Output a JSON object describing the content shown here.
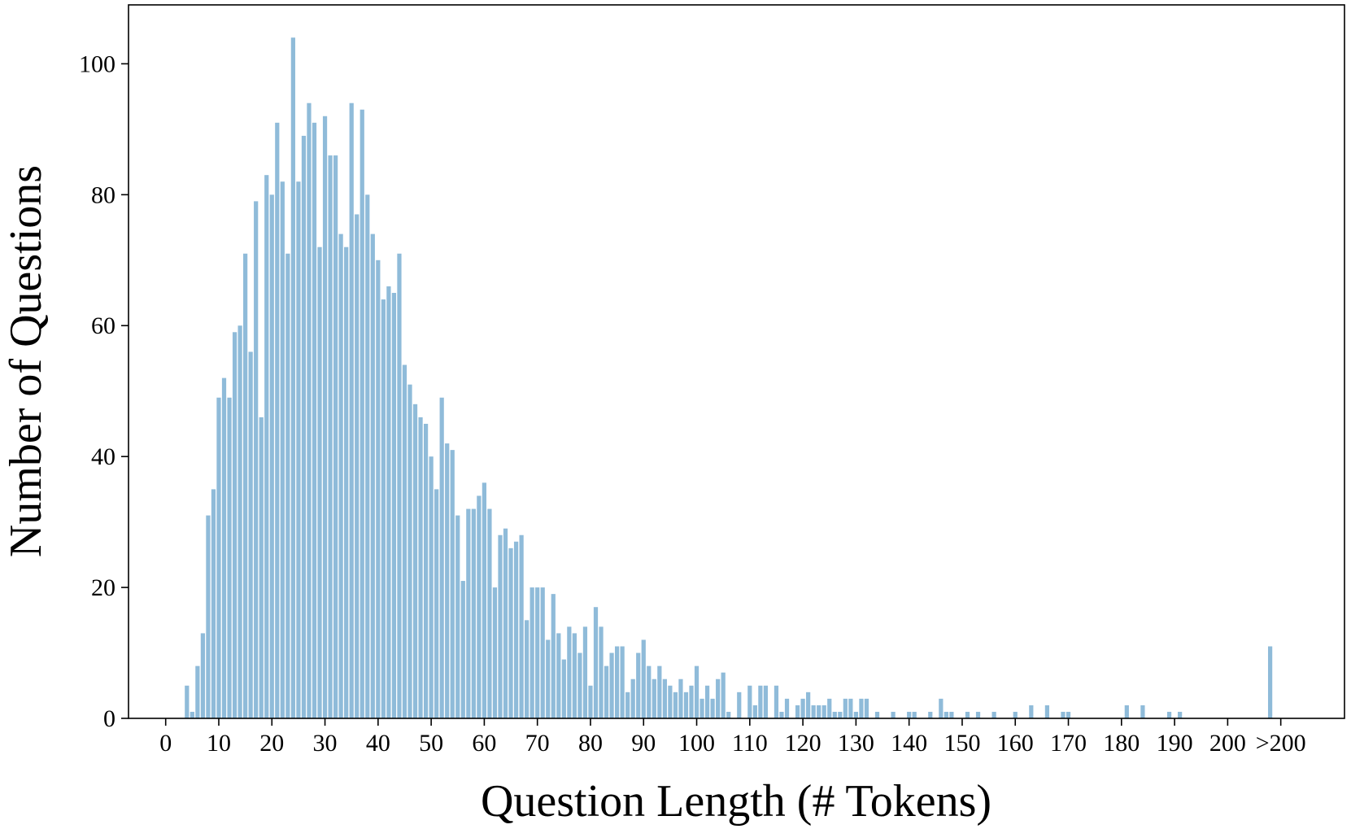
{
  "chart_data": {
    "type": "bar",
    "title": "",
    "xlabel": "Question Length (# Tokens)",
    "ylabel": "Number of Questions",
    "ylim": [
      0,
      109
    ],
    "xlim": [
      -7,
      222
    ],
    "yticks": [
      0,
      20,
      40,
      60,
      80,
      100
    ],
    "xticks": [
      {
        "value": 0,
        "label": "0"
      },
      {
        "value": 10,
        "label": "10"
      },
      {
        "value": 20,
        "label": "20"
      },
      {
        "value": 30,
        "label": "30"
      },
      {
        "value": 40,
        "label": "40"
      },
      {
        "value": 50,
        "label": "50"
      },
      {
        "value": 60,
        "label": "60"
      },
      {
        "value": 70,
        "label": "70"
      },
      {
        "value": 80,
        "label": "80"
      },
      {
        "value": 90,
        "label": "90"
      },
      {
        "value": 100,
        "label": "100"
      },
      {
        "value": 110,
        "label": "110"
      },
      {
        "value": 120,
        "label": "120"
      },
      {
        "value": 130,
        "label": "130"
      },
      {
        "value": 140,
        "label": "140"
      },
      {
        "value": 150,
        "label": "150"
      },
      {
        "value": 160,
        "label": "160"
      },
      {
        "value": 170,
        "label": "170"
      },
      {
        "value": 180,
        "label": "180"
      },
      {
        "value": 190,
        "label": "190"
      },
      {
        "value": 200,
        "label": "200"
      },
      {
        "value": 210,
        "label": ">200"
      }
    ],
    "bar_color": "#8fbbd9",
    "grid": false,
    "legend": "none",
    "bars": [
      {
        "x": 4,
        "y": 5
      },
      {
        "x": 5,
        "y": 1
      },
      {
        "x": 6,
        "y": 8
      },
      {
        "x": 7,
        "y": 13
      },
      {
        "x": 8,
        "y": 31
      },
      {
        "x": 9,
        "y": 35
      },
      {
        "x": 10,
        "y": 49
      },
      {
        "x": 11,
        "y": 52
      },
      {
        "x": 12,
        "y": 49
      },
      {
        "x": 13,
        "y": 59
      },
      {
        "x": 14,
        "y": 60
      },
      {
        "x": 15,
        "y": 71
      },
      {
        "x": 16,
        "y": 56
      },
      {
        "x": 17,
        "y": 79
      },
      {
        "x": 18,
        "y": 46
      },
      {
        "x": 19,
        "y": 83
      },
      {
        "x": 20,
        "y": 80
      },
      {
        "x": 21,
        "y": 91
      },
      {
        "x": 22,
        "y": 82
      },
      {
        "x": 23,
        "y": 71
      },
      {
        "x": 24,
        "y": 104
      },
      {
        "x": 25,
        "y": 82
      },
      {
        "x": 26,
        "y": 89
      },
      {
        "x": 27,
        "y": 94
      },
      {
        "x": 28,
        "y": 91
      },
      {
        "x": 29,
        "y": 72
      },
      {
        "x": 30,
        "y": 92
      },
      {
        "x": 31,
        "y": 86
      },
      {
        "x": 32,
        "y": 86
      },
      {
        "x": 33,
        "y": 74
      },
      {
        "x": 34,
        "y": 72
      },
      {
        "x": 35,
        "y": 94
      },
      {
        "x": 36,
        "y": 77
      },
      {
        "x": 37,
        "y": 93
      },
      {
        "x": 38,
        "y": 80
      },
      {
        "x": 39,
        "y": 74
      },
      {
        "x": 40,
        "y": 70
      },
      {
        "x": 41,
        "y": 64
      },
      {
        "x": 42,
        "y": 66
      },
      {
        "x": 43,
        "y": 65
      },
      {
        "x": 44,
        "y": 71
      },
      {
        "x": 45,
        "y": 54
      },
      {
        "x": 46,
        "y": 51
      },
      {
        "x": 47,
        "y": 48
      },
      {
        "x": 48,
        "y": 46
      },
      {
        "x": 49,
        "y": 45
      },
      {
        "x": 50,
        "y": 40
      },
      {
        "x": 51,
        "y": 35
      },
      {
        "x": 52,
        "y": 49
      },
      {
        "x": 53,
        "y": 42
      },
      {
        "x": 54,
        "y": 41
      },
      {
        "x": 55,
        "y": 31
      },
      {
        "x": 56,
        "y": 21
      },
      {
        "x": 57,
        "y": 32
      },
      {
        "x": 58,
        "y": 32
      },
      {
        "x": 59,
        "y": 34
      },
      {
        "x": 60,
        "y": 36
      },
      {
        "x": 61,
        "y": 32
      },
      {
        "x": 62,
        "y": 20
      },
      {
        "x": 63,
        "y": 28
      },
      {
        "x": 64,
        "y": 29
      },
      {
        "x": 65,
        "y": 26
      },
      {
        "x": 66,
        "y": 27
      },
      {
        "x": 67,
        "y": 28
      },
      {
        "x": 68,
        "y": 15
      },
      {
        "x": 69,
        "y": 20
      },
      {
        "x": 70,
        "y": 20
      },
      {
        "x": 71,
        "y": 20
      },
      {
        "x": 72,
        "y": 12
      },
      {
        "x": 73,
        "y": 19
      },
      {
        "x": 74,
        "y": 13
      },
      {
        "x": 75,
        "y": 9
      },
      {
        "x": 76,
        "y": 14
      },
      {
        "x": 77,
        "y": 13
      },
      {
        "x": 78,
        "y": 10
      },
      {
        "x": 79,
        "y": 14
      },
      {
        "x": 80,
        "y": 5
      },
      {
        "x": 81,
        "y": 17
      },
      {
        "x": 82,
        "y": 14
      },
      {
        "x": 83,
        "y": 8
      },
      {
        "x": 84,
        "y": 10
      },
      {
        "x": 85,
        "y": 11
      },
      {
        "x": 86,
        "y": 11
      },
      {
        "x": 87,
        "y": 4
      },
      {
        "x": 88,
        "y": 6
      },
      {
        "x": 89,
        "y": 10
      },
      {
        "x": 90,
        "y": 12
      },
      {
        "x": 91,
        "y": 8
      },
      {
        "x": 92,
        "y": 6
      },
      {
        "x": 93,
        "y": 8
      },
      {
        "x": 94,
        "y": 6
      },
      {
        "x": 95,
        "y": 5
      },
      {
        "x": 96,
        "y": 4
      },
      {
        "x": 97,
        "y": 6
      },
      {
        "x": 98,
        "y": 4
      },
      {
        "x": 99,
        "y": 5
      },
      {
        "x": 100,
        "y": 8
      },
      {
        "x": 101,
        "y": 3
      },
      {
        "x": 102,
        "y": 5
      },
      {
        "x": 103,
        "y": 3
      },
      {
        "x": 104,
        "y": 6
      },
      {
        "x": 105,
        "y": 7
      },
      {
        "x": 106,
        "y": 1
      },
      {
        "x": 108,
        "y": 4
      },
      {
        "x": 110,
        "y": 5
      },
      {
        "x": 111,
        "y": 2
      },
      {
        "x": 112,
        "y": 5
      },
      {
        "x": 113,
        "y": 5
      },
      {
        "x": 115,
        "y": 5
      },
      {
        "x": 116,
        "y": 1
      },
      {
        "x": 117,
        "y": 3
      },
      {
        "x": 119,
        "y": 2
      },
      {
        "x": 120,
        "y": 3
      },
      {
        "x": 121,
        "y": 4
      },
      {
        "x": 122,
        "y": 2
      },
      {
        "x": 123,
        "y": 2
      },
      {
        "x": 124,
        "y": 2
      },
      {
        "x": 125,
        "y": 3
      },
      {
        "x": 126,
        "y": 1
      },
      {
        "x": 127,
        "y": 1
      },
      {
        "x": 128,
        "y": 3
      },
      {
        "x": 129,
        "y": 3
      },
      {
        "x": 130,
        "y": 1
      },
      {
        "x": 131,
        "y": 3
      },
      {
        "x": 132,
        "y": 3
      },
      {
        "x": 134,
        "y": 1
      },
      {
        "x": 137,
        "y": 1
      },
      {
        "x": 140,
        "y": 1
      },
      {
        "x": 141,
        "y": 1
      },
      {
        "x": 144,
        "y": 1
      },
      {
        "x": 146,
        "y": 3
      },
      {
        "x": 147,
        "y": 1
      },
      {
        "x": 148,
        "y": 1
      },
      {
        "x": 151,
        "y": 1
      },
      {
        "x": 153,
        "y": 1
      },
      {
        "x": 156,
        "y": 1
      },
      {
        "x": 160,
        "y": 1
      },
      {
        "x": 163,
        "y": 2
      },
      {
        "x": 166,
        "y": 2
      },
      {
        "x": 169,
        "y": 1
      },
      {
        "x": 170,
        "y": 1
      },
      {
        "x": 181,
        "y": 2
      },
      {
        "x": 184,
        "y": 2
      },
      {
        "x": 189,
        "y": 1
      },
      {
        "x": 191,
        "y": 1
      },
      {
        "x": 208,
        "y": 11
      }
    ]
  }
}
